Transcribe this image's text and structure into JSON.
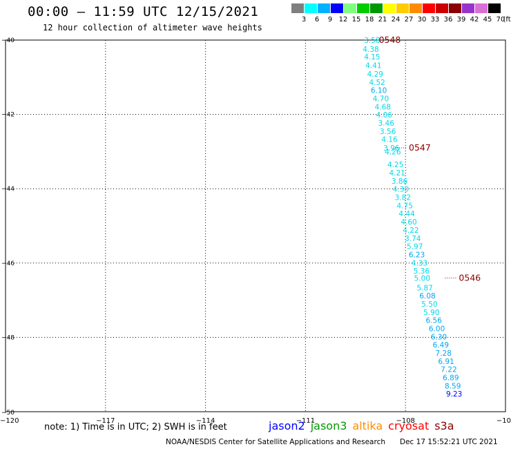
{
  "header": {
    "title": "00:00 – 11:59 UTC 12/15/2021",
    "subtitle": "12 hour collection of altimeter wave heights"
  },
  "legend": {
    "unit": "(ft)",
    "items": [
      {
        "label": "3",
        "color": "#7f7f7f"
      },
      {
        "label": "6",
        "color": "#00ffff"
      },
      {
        "label": "9",
        "color": "#00b2ff"
      },
      {
        "label": "12",
        "color": "#0000ff"
      },
      {
        "label": "15",
        "color": "#7fff7f"
      },
      {
        "label": "18",
        "color": "#00cc00"
      },
      {
        "label": "21",
        "color": "#009900"
      },
      {
        "label": "24",
        "color": "#ffff00"
      },
      {
        "label": "27",
        "color": "#ffcc00"
      },
      {
        "label": "30",
        "color": "#ff8c00"
      },
      {
        "label": "33",
        "color": "#ff0000"
      },
      {
        "label": "36",
        "color": "#cc0000"
      },
      {
        "label": "39",
        "color": "#8b0000"
      },
      {
        "label": "42",
        "color": "#9932cc"
      },
      {
        "label": "45",
        "color": "#da70d6"
      },
      {
        "label": "70",
        "color": "#000000"
      }
    ]
  },
  "footer": {
    "note": "note: 1) Time is in UTC; 2) SWH is in feet",
    "satellites": [
      {
        "name": "jason2",
        "color": "#0000ff"
      },
      {
        "name": "jason3",
        "color": "#009900"
      },
      {
        "name": "altika",
        "color": "#ff8c00"
      },
      {
        "name": "cryosat",
        "color": "#ff0000"
      },
      {
        "name": "s3a",
        "color": "#8b0000"
      }
    ],
    "credit": "NOAA/NESDIS Center for Satellite Applications and Research",
    "timestamp": "Dec 17 15:52:21 UTC 2021"
  },
  "chart_data": {
    "type": "scatter",
    "title": "00:00 – 11:59 UTC 12/15/2021",
    "subtitle": "12 hour collection of altimeter wave heights",
    "xlabel": "",
    "ylabel": "",
    "xlim": [
      -120,
      -105
    ],
    "ylim": [
      -50,
      -40
    ],
    "x_ticks": [
      -117,
      -114,
      -111,
      -108
    ],
    "y_ticks": [
      -40,
      -42,
      -44,
      -46,
      -48,
      -50
    ],
    "x_tick_labels": [
      "−117",
      "−114",
      "−111",
      "−108"
    ],
    "y_tick_labels": [
      "−40",
      "−42",
      "−44",
      "−46",
      "−48",
      "−50"
    ],
    "corner_labels": {
      "x_min": "−120",
      "x_max": "−10",
      "y_min": "−50"
    },
    "grid": true,
    "series": [
      {
        "name": "s3a",
        "color_by_value": true,
        "points": [
          {
            "x": -109.0,
            "y": -40.0,
            "v": "3.58"
          },
          {
            "x": -109.04,
            "y": -40.24,
            "v": "4.38"
          },
          {
            "x": -109.0,
            "y": -40.45,
            "v": "4.15"
          },
          {
            "x": -108.96,
            "y": -40.68,
            "v": "4.41"
          },
          {
            "x": -108.91,
            "y": -40.91,
            "v": "4.29"
          },
          {
            "x": -108.85,
            "y": -41.13,
            "v": "4.52"
          },
          {
            "x": -108.8,
            "y": -41.35,
            "v": "6.10"
          },
          {
            "x": -108.74,
            "y": -41.57,
            "v": "4.70"
          },
          {
            "x": -108.68,
            "y": -41.79,
            "v": "4.68"
          },
          {
            "x": -108.64,
            "y": -42.01,
            "v": "4.06"
          },
          {
            "x": -108.58,
            "y": -42.23,
            "v": "3.46"
          },
          {
            "x": -108.53,
            "y": -42.45,
            "v": "3.56"
          },
          {
            "x": -108.48,
            "y": -42.67,
            "v": "4.16"
          },
          {
            "x": -108.42,
            "y": -42.9,
            "v": "3.96"
          },
          {
            "x": -108.38,
            "y": -43.0,
            "v": "4.26"
          },
          {
            "x": -108.3,
            "y": -43.35,
            "v": "4.25"
          },
          {
            "x": -108.25,
            "y": -43.57,
            "v": "4.21"
          },
          {
            "x": -108.18,
            "y": -43.79,
            "v": "3.86"
          },
          {
            "x": -108.14,
            "y": -44.01,
            "v": "4.30"
          },
          {
            "x": -108.08,
            "y": -44.23,
            "v": "3.82"
          },
          {
            "x": -108.02,
            "y": -44.45,
            "v": "4.75"
          },
          {
            "x": -107.96,
            "y": -44.67,
            "v": "4.44"
          },
          {
            "x": -107.9,
            "y": -44.89,
            "v": "4.60"
          },
          {
            "x": -107.84,
            "y": -45.11,
            "v": "4.22"
          },
          {
            "x": -107.78,
            "y": -45.33,
            "v": "3.74"
          },
          {
            "x": -107.72,
            "y": -45.55,
            "v": "5.97"
          },
          {
            "x": -107.66,
            "y": -45.77,
            "v": "6.23"
          },
          {
            "x": -107.58,
            "y": -45.99,
            "v": "4.33"
          },
          {
            "x": -107.52,
            "y": -46.21,
            "v": "5.36"
          },
          {
            "x": -107.5,
            "y": -46.4,
            "v": "5.00"
          },
          {
            "x": -107.42,
            "y": -46.66,
            "v": "5.87"
          },
          {
            "x": -107.34,
            "y": -46.88,
            "v": "6.08"
          },
          {
            "x": -107.28,
            "y": -47.1,
            "v": "5.50"
          },
          {
            "x": -107.22,
            "y": -47.32,
            "v": "5.90"
          },
          {
            "x": -107.15,
            "y": -47.54,
            "v": "6.56"
          },
          {
            "x": -107.06,
            "y": -47.76,
            "v": "6.00"
          },
          {
            "x": -107.0,
            "y": -47.98,
            "v": "6.30"
          },
          {
            "x": -106.94,
            "y": -48.2,
            "v": "6.49"
          },
          {
            "x": -106.86,
            "y": -48.42,
            "v": "7.28"
          },
          {
            "x": -106.78,
            "y": -48.64,
            "v": "6.91"
          },
          {
            "x": -106.7,
            "y": -48.86,
            "v": "7.22"
          },
          {
            "x": -106.64,
            "y": -49.08,
            "v": "6.89"
          },
          {
            "x": -106.58,
            "y": -49.3,
            "v": "8.59"
          },
          {
            "x": -106.54,
            "y": -49.52,
            "v": "9.23"
          }
        ]
      }
    ],
    "time_labels": [
      {
        "text": "0548",
        "x": -108.8,
        "y": -40.0
      },
      {
        "text": "0547",
        "x": -107.9,
        "y": -42.9
      },
      {
        "text": "0546",
        "x": -106.4,
        "y": -46.4
      }
    ],
    "time_label_color": "#8b0000",
    "track_color": "#8b0000"
  }
}
